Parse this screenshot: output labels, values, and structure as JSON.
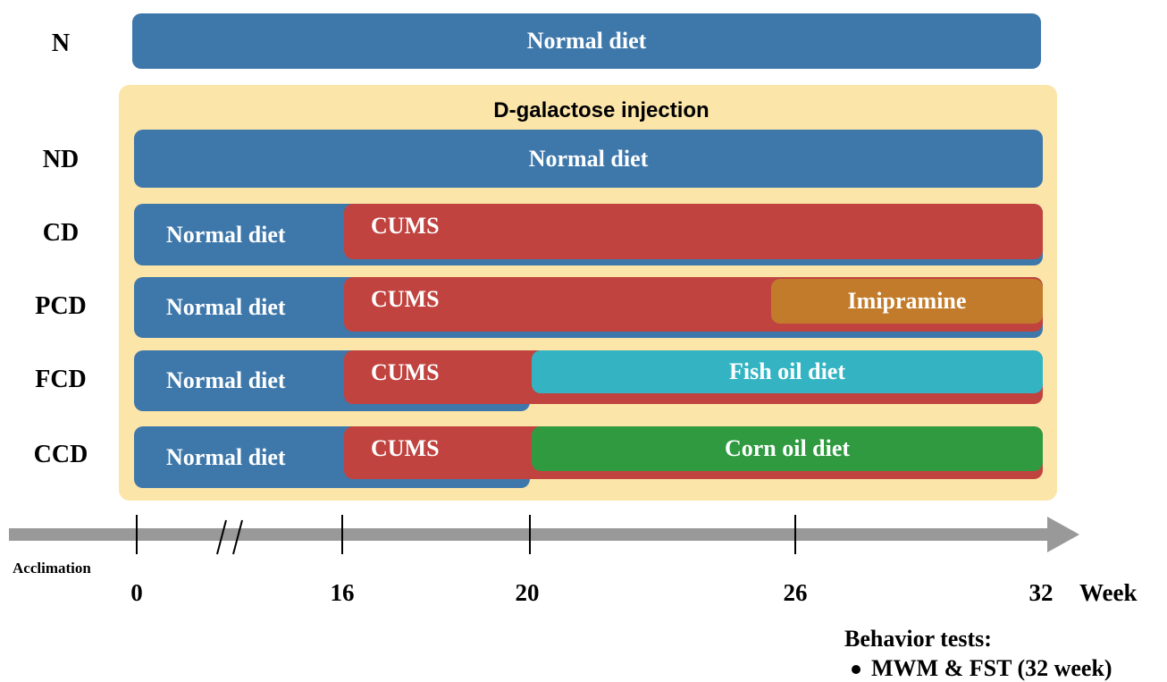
{
  "groups": [
    {
      "label": "N",
      "bars": [
        "Normal diet"
      ]
    },
    {
      "label": "ND",
      "bars": [
        "Normal diet"
      ]
    },
    {
      "label": "CD",
      "bars": [
        "Normal diet",
        "CUMS"
      ]
    },
    {
      "label": "PCD",
      "bars": [
        "Normal diet",
        "CUMS",
        "Imipramine"
      ]
    },
    {
      "label": "FCD",
      "bars": [
        "Normal diet",
        "CUMS",
        "Fish oil diet"
      ]
    },
    {
      "label": "CCD",
      "bars": [
        "Normal diet",
        "CUMS",
        "Corn oil diet"
      ]
    }
  ],
  "injection": "D-galactose injection",
  "timeline": {
    "acclimation": "Acclimation",
    "ticks": [
      0,
      16,
      20,
      26,
      32
    ],
    "unit": "Week"
  },
  "notes": {
    "title": "Behavior tests:",
    "items": [
      "MWM & FST (32 week)"
    ]
  }
}
